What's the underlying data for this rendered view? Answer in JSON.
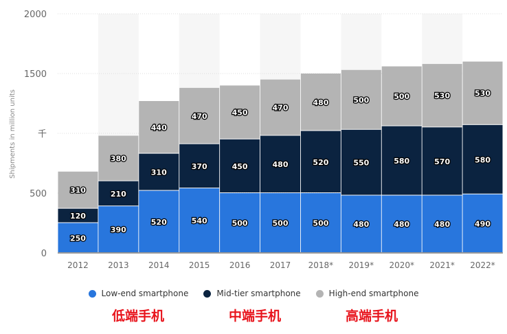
{
  "chart_data": {
    "type": "bar",
    "stacked": true,
    "title": "",
    "xlabel": "",
    "ylabel": "Shipments in million units",
    "ylim": [
      0,
      2000
    ],
    "yticks": [
      "0",
      "500",
      "千",
      "1500",
      "2000"
    ],
    "ytick_values": [
      0,
      500,
      1000,
      1500,
      2000
    ],
    "grid": true,
    "legend_position": "bottom",
    "categories": [
      "2012",
      "2013",
      "2014",
      "2015",
      "2016",
      "2017",
      "2018*",
      "2019*",
      "2020*",
      "2021*",
      "2022*"
    ],
    "series": [
      {
        "name": "Low-end smartphone",
        "color": "#2876dd",
        "values": [
          250,
          390,
          520,
          540,
          500,
          500,
          500,
          480,
          480,
          480,
          490
        ]
      },
      {
        "name": "Mid-tier smartphone",
        "color": "#0b2340",
        "values": [
          120,
          210,
          310,
          370,
          450,
          480,
          520,
          550,
          580,
          570,
          580
        ]
      },
      {
        "name": "High-end smartphone",
        "color": "#b4b4b4",
        "values": [
          310,
          380,
          440,
          470,
          450,
          470,
          480,
          500,
          500,
          530,
          530
        ]
      }
    ]
  },
  "annotations": [
    "低端手机",
    "中端手机",
    "高端手机"
  ]
}
